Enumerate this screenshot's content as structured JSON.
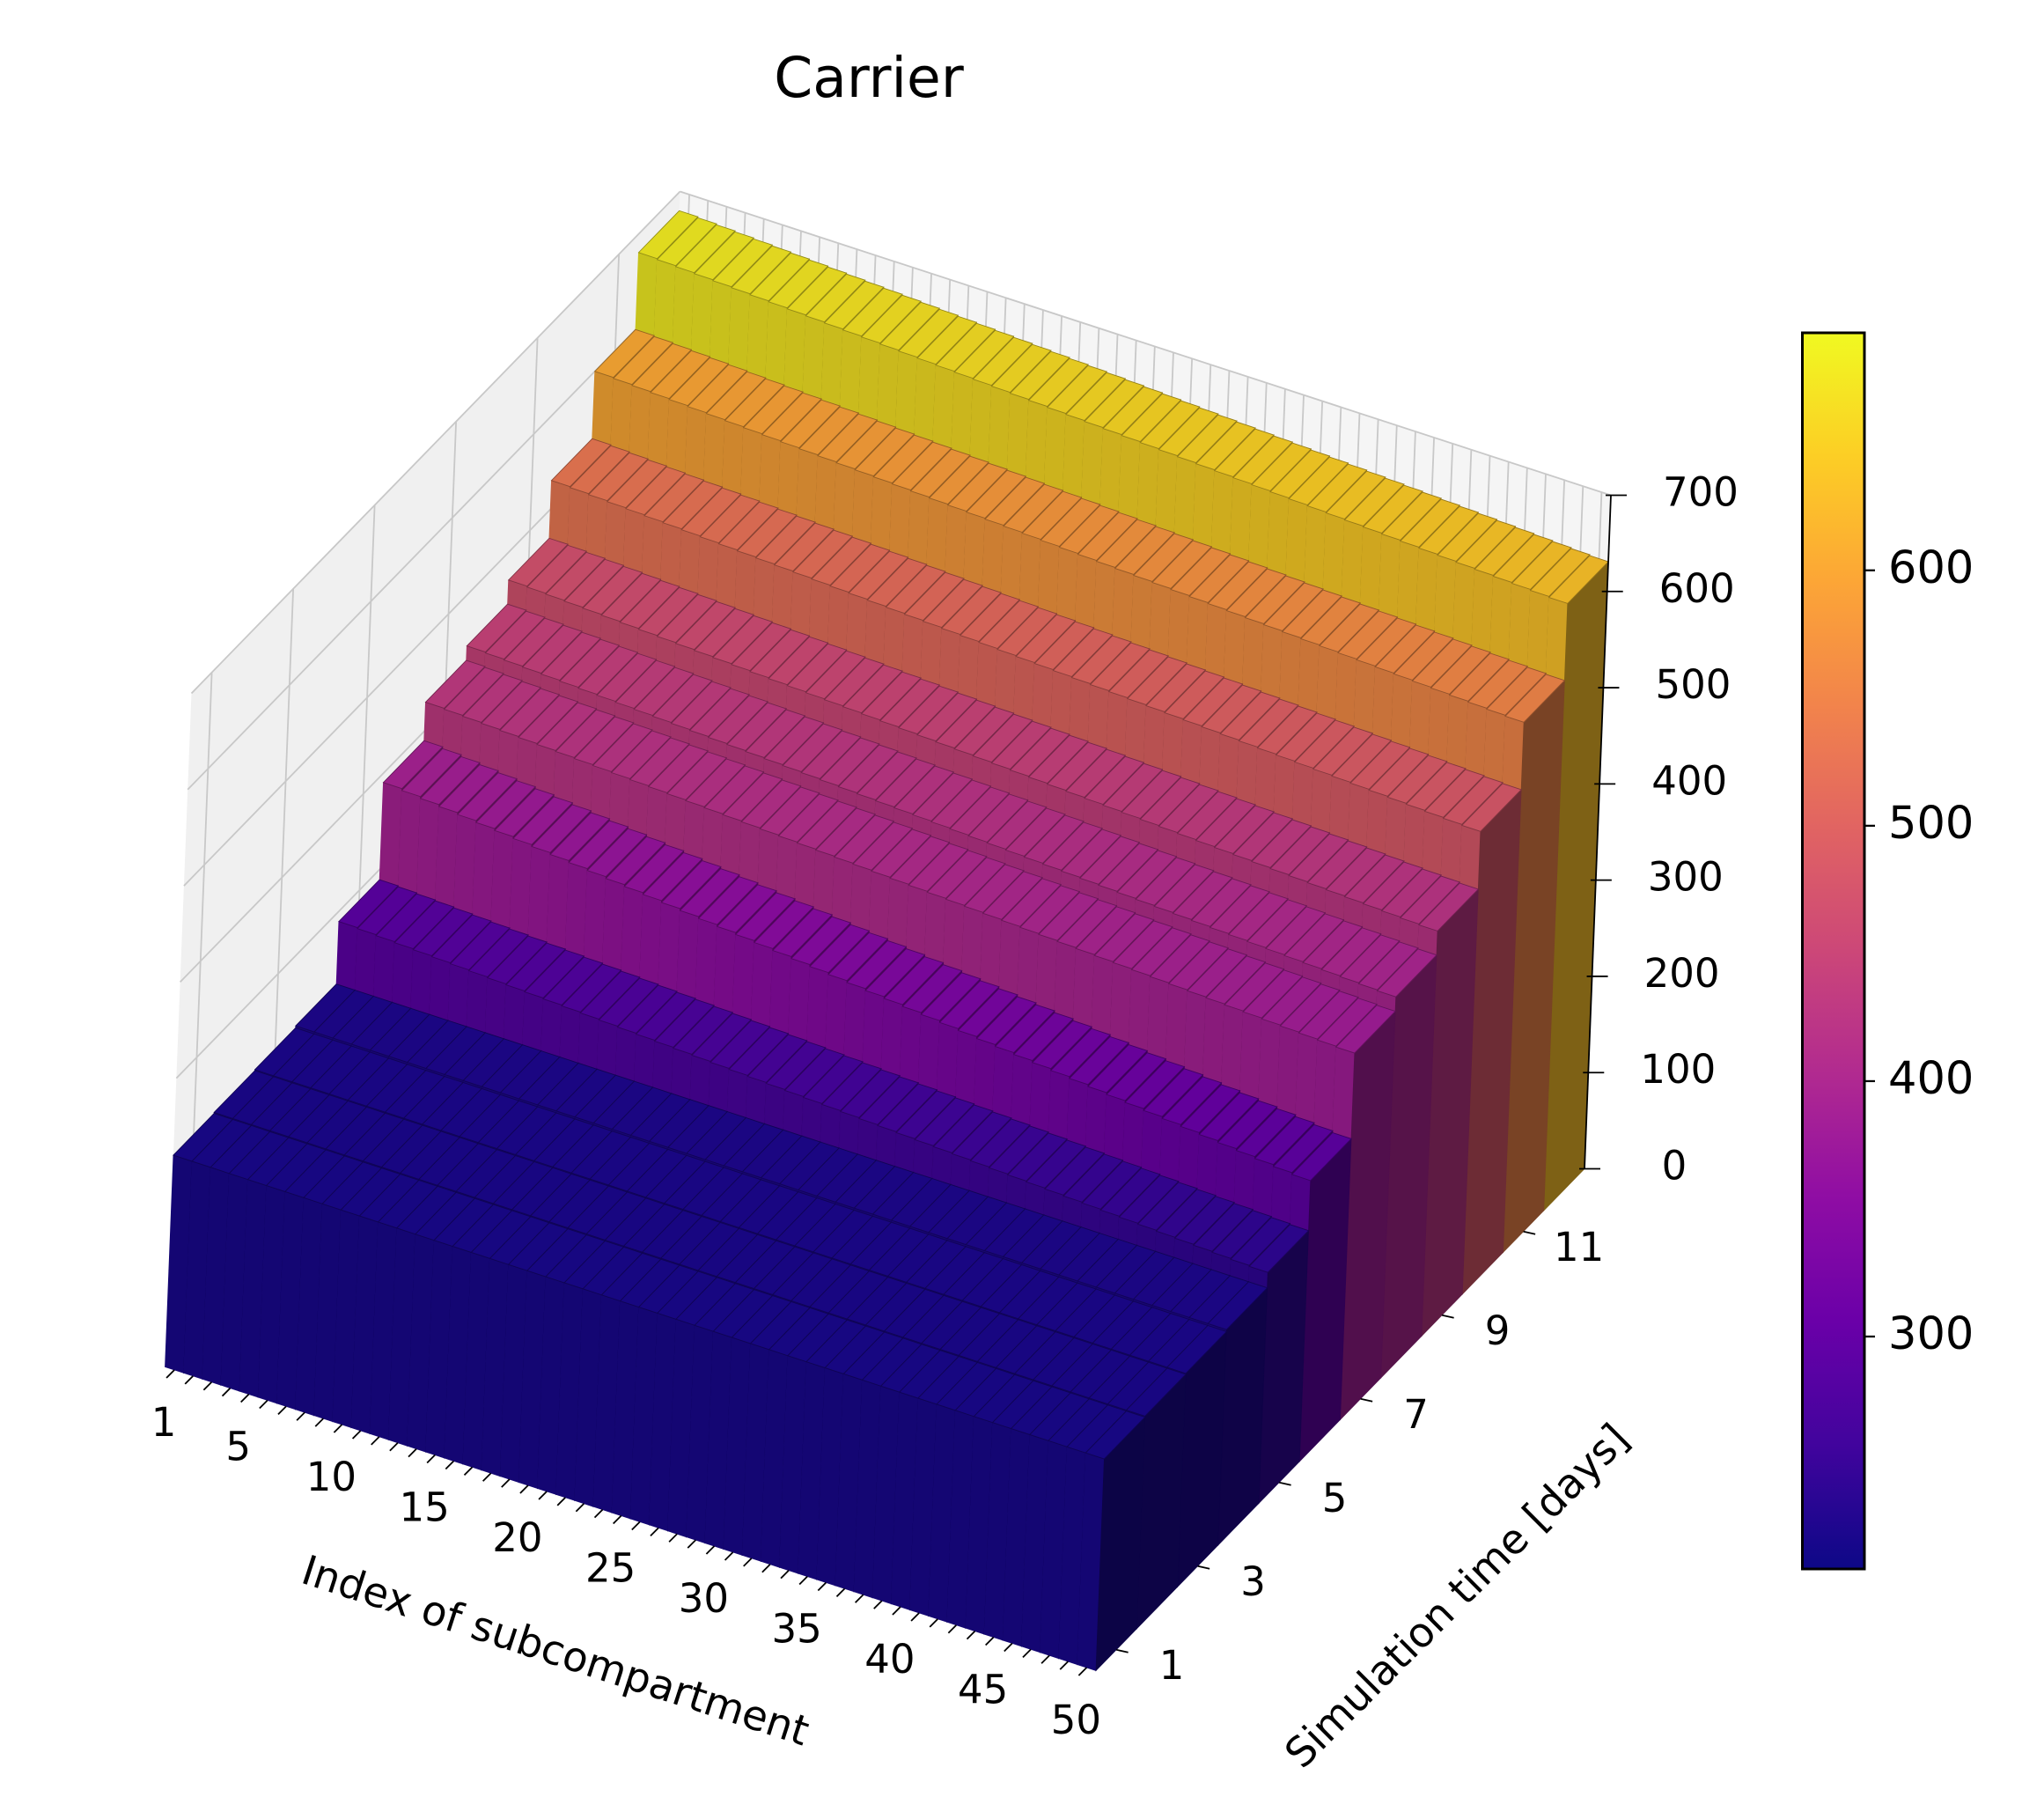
{
  "chart_data": {
    "type": "bar3d",
    "title": "Carrier",
    "xlabel": "Index of subcompartment",
    "ylabel": "Simulation time [days]",
    "x": [
      1,
      2,
      3,
      4,
      5,
      6,
      7,
      8,
      9,
      10,
      11,
      12,
      13,
      14,
      15,
      16,
      17,
      18,
      19,
      20,
      21,
      22,
      23,
      24,
      25,
      26,
      27,
      28,
      29,
      30,
      31,
      32,
      33,
      34,
      35,
      36,
      37,
      38,
      39,
      40,
      41,
      42,
      43,
      44,
      45,
      46,
      47,
      48,
      49,
      50
    ],
    "y": [
      1,
      2,
      3,
      4,
      5,
      6,
      7,
      8,
      9,
      10,
      11,
      12
    ],
    "values": [
      [
        220,
        220,
        220,
        220,
        220,
        220,
        220,
        220,
        220,
        220,
        220,
        220,
        220,
        220,
        220,
        220,
        220,
        220,
        220,
        220,
        220,
        220,
        220,
        220,
        220,
        220,
        220,
        220,
        220,
        220,
        220,
        220,
        220,
        220,
        220,
        220,
        220,
        220,
        220,
        220,
        220,
        220,
        220,
        220,
        220,
        220,
        220,
        220,
        220,
        220
      ],
      [
        221,
        221,
        221,
        221,
        221,
        221,
        221,
        221,
        221,
        221,
        221,
        221,
        221,
        221,
        221,
        221,
        221,
        221,
        221,
        221,
        221,
        221,
        221,
        221,
        221,
        221,
        221,
        221,
        221,
        221,
        221,
        221,
        221,
        221,
        221,
        221,
        221,
        221,
        221,
        221,
        221,
        221,
        221,
        221,
        221,
        221,
        221,
        221,
        221,
        221
      ],
      [
        222,
        222,
        222,
        222,
        222,
        222,
        222,
        222,
        222,
        222,
        222,
        222,
        222,
        222,
        222,
        222,
        222,
        222,
        222,
        222,
        222,
        222,
        222,
        222,
        222,
        222,
        222,
        222,
        222,
        222,
        222,
        222,
        222,
        222,
        222,
        222,
        222,
        222,
        222,
        222,
        222,
        222,
        222,
        222,
        222,
        222,
        222,
        222,
        222,
        222
      ],
      [
        224,
        224,
        224,
        224,
        224,
        224,
        224,
        224,
        224,
        224,
        224,
        224,
        224,
        224,
        224,
        224,
        224,
        224,
        224,
        224,
        224,
        224,
        224,
        224,
        224,
        224,
        224,
        224,
        224,
        224,
        224,
        224,
        224,
        224,
        224,
        224,
        224,
        224,
        224,
        224,
        224,
        224,
        224,
        224,
        224,
        224,
        224,
        224,
        224,
        224
      ],
      [
        289,
        288,
        287,
        286,
        285,
        284,
        283,
        282,
        281,
        280,
        279,
        278,
        277,
        276,
        275,
        274,
        273,
        272,
        271,
        270,
        269,
        268,
        267,
        266,
        265,
        264,
        263,
        262,
        261,
        260,
        259,
        258,
        257,
        256,
        255,
        254,
        253,
        252,
        251,
        250,
        249,
        248,
        247,
        246,
        245,
        244,
        243,
        242,
        241,
        240
      ],
      [
        390,
        388,
        386,
        384,
        382,
        380,
        378,
        376,
        374,
        372,
        370,
        368,
        366,
        364,
        362,
        360,
        358,
        356,
        354,
        352,
        350,
        348,
        346,
        344,
        342,
        340,
        338,
        336,
        334,
        332,
        330,
        328,
        326,
        324,
        322,
        320,
        318,
        316,
        314,
        312,
        310,
        308,
        306,
        304,
        302,
        300,
        298,
        296,
        294,
        292
      ],
      [
        430,
        429,
        428,
        427,
        426,
        425,
        424,
        423,
        422,
        421,
        420,
        419,
        418,
        417,
        416,
        415,
        414,
        413,
        412,
        411,
        410,
        409,
        408,
        407,
        406,
        405,
        404,
        403,
        402,
        401,
        400,
        399,
        398,
        397,
        396,
        395,
        394,
        393,
        392,
        391,
        390,
        389,
        388,
        387,
        386,
        385,
        384,
        383,
        382,
        381
      ],
      [
        445,
        444,
        443,
        442,
        441,
        440,
        439,
        438,
        437,
        436,
        435,
        434,
        433,
        432,
        431,
        430,
        429,
        428,
        427,
        426,
        425,
        424,
        423,
        422,
        421,
        420,
        419,
        418,
        417,
        416,
        415,
        414,
        413,
        412,
        411,
        410,
        409,
        408,
        407,
        406,
        405,
        404,
        403,
        402,
        401,
        400,
        399,
        398,
        397,
        396
      ],
      [
        470,
        469,
        468,
        467,
        466,
        465,
        464,
        463,
        462,
        461,
        460,
        459,
        458,
        457,
        456,
        455,
        454,
        453,
        452,
        451,
        450,
        449,
        448,
        447,
        446,
        445,
        444,
        443,
        442,
        441,
        440,
        439,
        438,
        437,
        436,
        435,
        434,
        433,
        432,
        431,
        430,
        429,
        428,
        427,
        426,
        425,
        424,
        423,
        422,
        421
      ],
      [
        530,
        529,
        528,
        527,
        526,
        525,
        524,
        523,
        522,
        521,
        520,
        519,
        518,
        517,
        516,
        515,
        514,
        513,
        512,
        511,
        510,
        509,
        508,
        507,
        506,
        505,
        504,
        503,
        502,
        501,
        500,
        499,
        498,
        497,
        496,
        495,
        494,
        493,
        492,
        491,
        490,
        489,
        488,
        487,
        486,
        485,
        484,
        483,
        482,
        481
      ],
      [
        600,
        599,
        598,
        597,
        596,
        595,
        594,
        593,
        592,
        591,
        590,
        589,
        588,
        587,
        586,
        585,
        584,
        583,
        582,
        581,
        580,
        579,
        578,
        577,
        576,
        575,
        574,
        573,
        572,
        571,
        570,
        569,
        568,
        567,
        566,
        565,
        564,
        563,
        562,
        561,
        560,
        559,
        558,
        557,
        556,
        555,
        554,
        553,
        552,
        551
      ],
      [
        680,
        679,
        678,
        677,
        676,
        675,
        674,
        673,
        672,
        671,
        670,
        669,
        668,
        667,
        666,
        665,
        664,
        663,
        662,
        661,
        660,
        659,
        658,
        657,
        656,
        655,
        654,
        653,
        652,
        651,
        650,
        649,
        648,
        647,
        646,
        645,
        644,
        643,
        642,
        641,
        640,
        639,
        638,
        637,
        636,
        635,
        634,
        633,
        632,
        631
      ]
    ],
    "xlim": [
      0.5,
      50.5
    ],
    "ylim": [
      0.5,
      12.5
    ],
    "zlim": [
      0,
      700
    ],
    "xticks": [
      1,
      5,
      10,
      15,
      20,
      25,
      30,
      35,
      40,
      45,
      50
    ],
    "yticks": [
      1,
      3,
      5,
      7,
      9,
      11
    ],
    "zticks": [
      0,
      100,
      200,
      300,
      400,
      500,
      600,
      700
    ],
    "colormap": [
      "#0d0887",
      "#41049d",
      "#6a00a8",
      "#8f0da4",
      "#b12a90",
      "#cc4778",
      "#e16462",
      "#f2844b",
      "#fca636",
      "#fcce25",
      "#f0f921"
    ],
    "colorbar": {
      "lim": [
        209,
        693
      ],
      "ticks": [
        300,
        400,
        500,
        600
      ]
    }
  }
}
